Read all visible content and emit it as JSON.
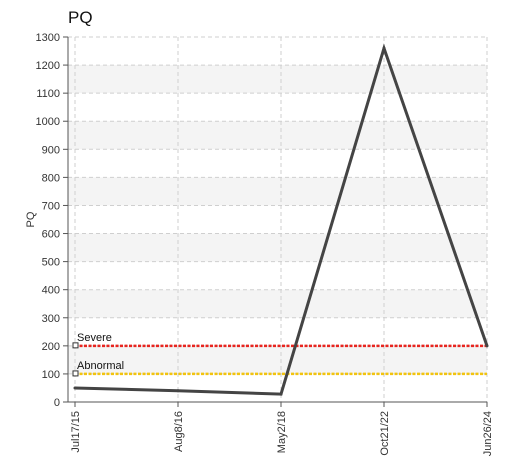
{
  "chart_data": {
    "type": "line",
    "title": "PQ",
    "xlabel": "",
    "ylabel": "PQ",
    "x": [
      "Jul17/15",
      "Aug8/16",
      "May2/18",
      "Oct21/22",
      "Jun26/24"
    ],
    "series": [
      {
        "values": [
          50,
          40,
          28,
          1260,
          200
        ],
        "color": "#444444"
      }
    ],
    "ylim": [
      0,
      1300
    ],
    "yticks": [
      0,
      100,
      200,
      300,
      400,
      500,
      600,
      700,
      800,
      900,
      1000,
      1100,
      1200,
      1300
    ],
    "grid": true,
    "thresholds": [
      {
        "label": "Severe",
        "value": 200,
        "color": "#e8251f"
      },
      {
        "label": "Abnormal",
        "value": 100,
        "color": "#f2c40f"
      }
    ]
  }
}
